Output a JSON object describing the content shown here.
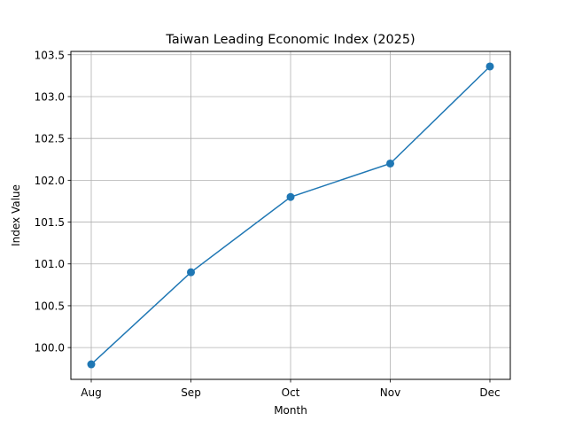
{
  "chart_data": {
    "type": "line",
    "title": "Taiwan Leading Economic Index (2025)",
    "xlabel": "Month",
    "ylabel": "Index Value",
    "categories": [
      "Aug",
      "Sep",
      "Oct",
      "Nov",
      "Dec"
    ],
    "series": [
      {
        "values": [
          99.8,
          100.9,
          101.8,
          102.2,
          103.36
        ],
        "color": "#1f77b4",
        "marker": "circle"
      }
    ],
    "ylim": [
      99.62,
      103.54
    ],
    "yticks": [
      "100.0",
      "100.5",
      "101.0",
      "101.5",
      "102.0",
      "102.5",
      "103.0",
      "103.5"
    ],
    "grid": true
  }
}
